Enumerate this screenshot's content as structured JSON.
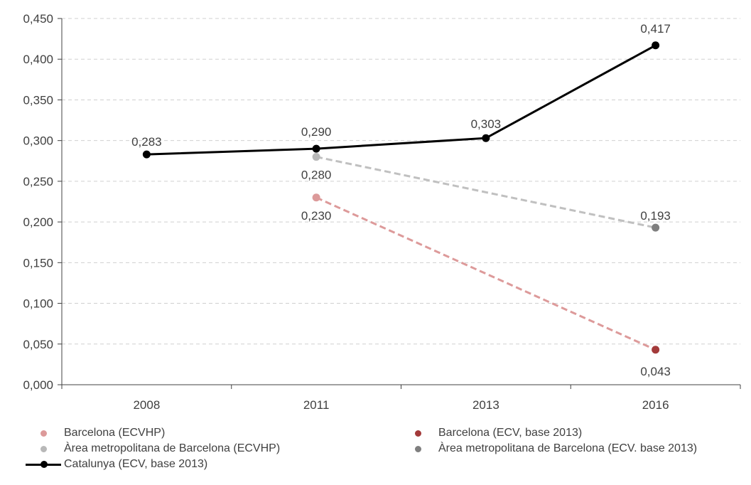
{
  "chart_data": {
    "type": "line",
    "categories": [
      "2008",
      "2011",
      "2013",
      "2016"
    ],
    "ylim": [
      0,
      0.45
    ],
    "yticks": [
      "0,000",
      "0,050",
      "0,100",
      "0,150",
      "0,200",
      "0,250",
      "0,300",
      "0,350",
      "0,400",
      "0,450"
    ],
    "ytick_values": [
      0,
      0.05,
      0.1,
      0.15,
      0.2,
      0.25,
      0.3,
      0.35,
      0.4,
      0.45
    ],
    "grid": true,
    "legend_position": "bottom",
    "series": [
      {
        "name": "Catalunya (ECV, base 2013)",
        "style": "solid",
        "color": "#000000",
        "points": [
          {
            "x": "2008",
            "y": 0.283,
            "label": "0,283"
          },
          {
            "x": "2011",
            "y": 0.29,
            "label": "0,290"
          },
          {
            "x": "2013",
            "y": 0.303,
            "label": "0,303"
          },
          {
            "x": "2016",
            "y": 0.417,
            "label": "0,417"
          }
        ]
      },
      {
        "name": "Àrea metropolitana de Barcelona (ECVHP)",
        "style": "dashed",
        "color": "#c0c0c0",
        "points": [
          {
            "x": "2011",
            "y": 0.28,
            "label": "0,280",
            "marker_color": "#b8b8b8"
          },
          {
            "x": "2016",
            "y": 0.193,
            "label": "0,193",
            "marker_color": "#7f7f7f"
          }
        ]
      },
      {
        "name": "Barcelona (ECVHP)",
        "style": "dashed",
        "color": "#dd9a9a",
        "points": [
          {
            "x": "2011",
            "y": 0.23,
            "label": "0,230",
            "marker_color": "#dc9a9a"
          },
          {
            "x": "2016",
            "y": 0.043,
            "label": "0,043",
            "marker_color": "#a33a3a"
          }
        ]
      }
    ]
  },
  "legend": {
    "items": [
      {
        "label": "Barcelona (ECVHP)",
        "color": "#dc9a9a",
        "kind": "dot"
      },
      {
        "label": "Barcelona (ECV, base 2013)",
        "color": "#a33a3a",
        "kind": "dot"
      },
      {
        "label": "Àrea metropolitana de Barcelona (ECVHP)",
        "color": "#b8b8b8",
        "kind": "dot"
      },
      {
        "label": "Àrea metropolitana de Barcelona (ECV. base 2013)",
        "color": "#7f7f7f",
        "kind": "dot"
      },
      {
        "label": "Catalunya (ECV, base 2013)",
        "color": "#000000",
        "kind": "line"
      }
    ]
  }
}
